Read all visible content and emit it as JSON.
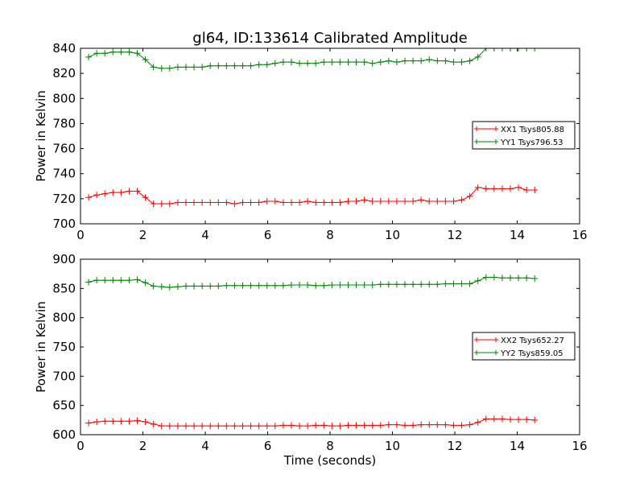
{
  "title": "gl64, ID:133614 Calibrated Amplitude",
  "colors": {
    "xx": "#ff0000",
    "yy": "#008000",
    "axes": "#000000",
    "background": "#ffffff"
  },
  "chart_data": [
    {
      "type": "line",
      "title": "gl64, ID:133614 Calibrated Amplitude",
      "xlabel": "",
      "ylabel": "Power in Kelvin",
      "xlim": [
        0,
        16
      ],
      "ylim": [
        700,
        840
      ],
      "xticks": [
        0,
        2,
        4,
        6,
        8,
        10,
        12,
        14,
        16
      ],
      "yticks": [
        700,
        720,
        740,
        760,
        780,
        800,
        820,
        840
      ],
      "grid": false,
      "legend_position": "center-right",
      "marker": "+",
      "series": [
        {
          "name": "XX1 Tsys805.88",
          "color": "#ff0000",
          "x": [
            0.26,
            0.52,
            0.78,
            1.04,
            1.3,
            1.56,
            1.82,
            2.08,
            2.34,
            2.6,
            2.86,
            3.12,
            3.38,
            3.64,
            3.9,
            4.16,
            4.42,
            4.68,
            4.94,
            5.2,
            5.46,
            5.72,
            5.98,
            6.24,
            6.5,
            6.76,
            7.02,
            7.28,
            7.54,
            7.8,
            8.06,
            8.32,
            8.58,
            8.84,
            9.1,
            9.36,
            9.62,
            9.88,
            10.14,
            10.4,
            10.66,
            10.92,
            11.18,
            11.44,
            11.7,
            11.96,
            12.22,
            12.48,
            12.74,
            13.0,
            13.26,
            13.52,
            13.78,
            14.04,
            14.3,
            14.56
          ],
          "values": [
            721,
            723,
            724,
            725,
            725,
            726,
            726,
            721,
            716,
            716,
            716,
            717,
            717,
            717,
            717,
            717,
            717,
            717,
            716,
            717,
            717,
            717,
            718,
            718,
            717,
            717,
            717,
            718,
            717,
            717,
            717,
            717,
            718,
            718,
            719,
            718,
            718,
            718,
            718,
            718,
            718,
            719,
            718,
            718,
            718,
            718,
            719,
            722,
            729,
            728,
            728,
            728,
            728,
            729,
            727,
            727
          ]
        },
        {
          "name": "YY1 Tsys796.53",
          "color": "#008000",
          "x": [
            0.26,
            0.52,
            0.78,
            1.04,
            1.3,
            1.56,
            1.82,
            2.08,
            2.34,
            2.6,
            2.86,
            3.12,
            3.38,
            3.64,
            3.9,
            4.16,
            4.42,
            4.68,
            4.94,
            5.2,
            5.46,
            5.72,
            5.98,
            6.24,
            6.5,
            6.76,
            7.02,
            7.28,
            7.54,
            7.8,
            8.06,
            8.32,
            8.58,
            8.84,
            9.1,
            9.36,
            9.62,
            9.88,
            10.14,
            10.4,
            10.66,
            10.92,
            11.18,
            11.44,
            11.7,
            11.96,
            12.22,
            12.48,
            12.74,
            13.0,
            13.26,
            13.52,
            13.78,
            14.04,
            14.3,
            14.56
          ],
          "values": [
            833,
            836,
            836,
            837,
            837,
            837,
            836,
            831,
            825,
            824,
            824,
            825,
            825,
            825,
            825,
            826,
            826,
            826,
            826,
            826,
            826,
            827,
            827,
            828,
            829,
            829,
            828,
            828,
            828,
            829,
            829,
            829,
            829,
            829,
            829,
            828,
            829,
            830,
            829,
            830,
            830,
            830,
            831,
            830,
            830,
            829,
            829,
            830,
            833,
            840,
            840,
            840,
            840,
            840,
            840,
            840
          ]
        }
      ]
    },
    {
      "type": "line",
      "title": "",
      "xlabel": "Time (seconds)",
      "ylabel": "Power in Kelvin",
      "xlim": [
        0,
        16
      ],
      "ylim": [
        600,
        900
      ],
      "xticks": [
        0,
        2,
        4,
        6,
        8,
        10,
        12,
        14,
        16
      ],
      "yticks": [
        600,
        650,
        700,
        750,
        800,
        850,
        900
      ],
      "grid": false,
      "legend_position": "center-right",
      "marker": "+",
      "series": [
        {
          "name": "XX2 Tsys652.27",
          "color": "#ff0000",
          "x": [
            0.26,
            0.52,
            0.78,
            1.04,
            1.3,
            1.56,
            1.82,
            2.08,
            2.34,
            2.6,
            2.86,
            3.12,
            3.38,
            3.64,
            3.9,
            4.16,
            4.42,
            4.68,
            4.94,
            5.2,
            5.46,
            5.72,
            5.98,
            6.24,
            6.5,
            6.76,
            7.02,
            7.28,
            7.54,
            7.8,
            8.06,
            8.32,
            8.58,
            8.84,
            9.1,
            9.36,
            9.62,
            9.88,
            10.14,
            10.4,
            10.66,
            10.92,
            11.18,
            11.44,
            11.7,
            11.96,
            12.22,
            12.48,
            12.74,
            13.0,
            13.26,
            13.52,
            13.78,
            14.04,
            14.3,
            14.56
          ],
          "values": [
            620,
            622,
            623,
            623,
            623,
            623,
            624,
            622,
            618,
            615,
            615,
            615,
            615,
            615,
            615,
            615,
            615,
            615,
            615,
            615,
            615,
            615,
            615,
            615,
            616,
            616,
            615,
            615,
            616,
            616,
            615,
            615,
            616,
            616,
            616,
            616,
            616,
            617,
            617,
            616,
            616,
            617,
            617,
            617,
            617,
            616,
            616,
            617,
            621,
            627,
            627,
            627,
            626,
            626,
            626,
            625
          ]
        },
        {
          "name": "YY2 Tsys859.05",
          "color": "#008000",
          "x": [
            0.26,
            0.52,
            0.78,
            1.04,
            1.3,
            1.56,
            1.82,
            2.08,
            2.34,
            2.6,
            2.86,
            3.12,
            3.38,
            3.64,
            3.9,
            4.16,
            4.42,
            4.68,
            4.94,
            5.2,
            5.46,
            5.72,
            5.98,
            6.24,
            6.5,
            6.76,
            7.02,
            7.28,
            7.54,
            7.8,
            8.06,
            8.32,
            8.58,
            8.84,
            9.1,
            9.36,
            9.62,
            9.88,
            10.14,
            10.4,
            10.66,
            10.92,
            11.18,
            11.44,
            11.7,
            11.96,
            12.22,
            12.48,
            12.74,
            13.0,
            13.26,
            13.52,
            13.78,
            14.04,
            14.3,
            14.56
          ],
          "values": [
            861,
            864,
            864,
            864,
            864,
            864,
            865,
            860,
            854,
            853,
            852,
            853,
            854,
            854,
            854,
            854,
            854,
            855,
            855,
            855,
            855,
            855,
            855,
            855,
            855,
            856,
            856,
            856,
            855,
            855,
            856,
            856,
            856,
            856,
            856,
            856,
            857,
            857,
            857,
            857,
            857,
            857,
            857,
            857,
            858,
            858,
            858,
            858,
            863,
            869,
            869,
            868,
            868,
            868,
            868,
            867
          ]
        }
      ]
    }
  ]
}
